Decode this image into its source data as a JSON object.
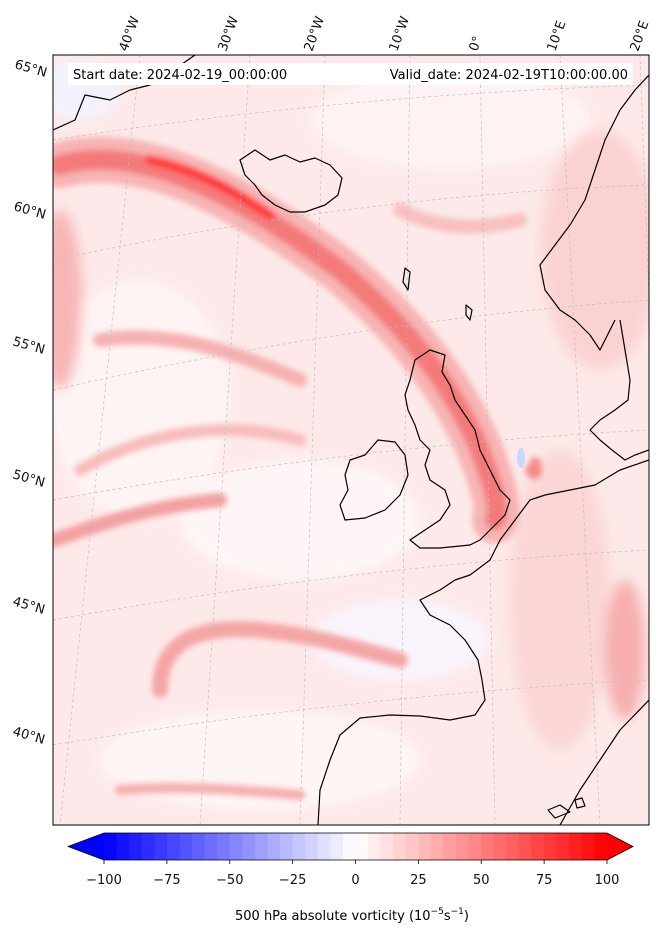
{
  "header": {
    "start_date": "Start date: 2024-02-19_00:00:00",
    "valid_date": "Valid_date: 2024-02-19T10:00:00.00"
  },
  "map": {
    "lon_labels": [
      "40°W",
      "30°W",
      "20°W",
      "10°W",
      "0°",
      "10°E",
      "20°E"
    ],
    "lat_labels": [
      "65°N",
      "60°N",
      "55°N",
      "50°N",
      "45°N",
      "40°N"
    ]
  },
  "colorbar": {
    "ticks": [
      "−100",
      "−75",
      "−50",
      "−25",
      "0",
      "25",
      "50",
      "75",
      "100"
    ],
    "tick_values": [
      -100,
      -75,
      -50,
      -25,
      0,
      25,
      50,
      75,
      100
    ],
    "range": [
      -100,
      100
    ],
    "label": "500 hPa absolute vorticity (10",
    "label_exp1": "−5",
    "label_mid": "s",
    "label_exp2": "−1",
    "label_end": ")",
    "colormap": "bwr",
    "low_color": "#0000ff",
    "mid_color": "#ffffff",
    "high_color": "#ff0000"
  }
}
